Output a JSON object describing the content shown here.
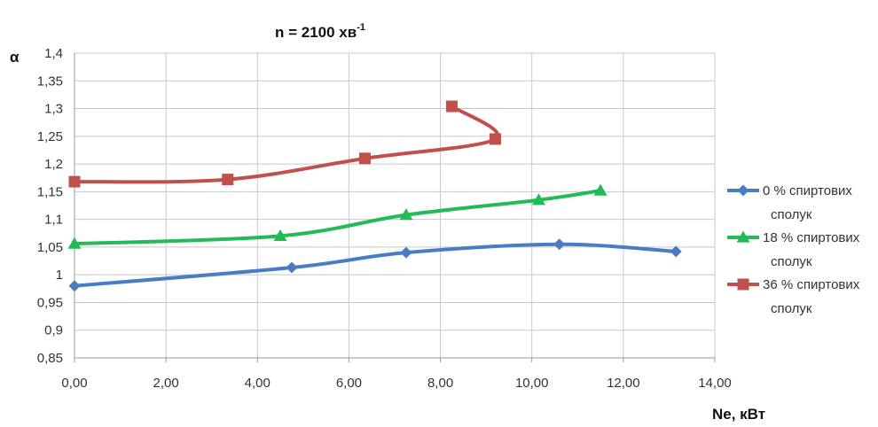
{
  "chart_data": {
    "type": "line",
    "title": "n = 2100 хв",
    "title_superscript": "-1",
    "xlabel": "Ne, кВт",
    "ylabel": "α",
    "xlim": [
      0,
      14
    ],
    "ylim": [
      0.85,
      1.4
    ],
    "x_ticks": [
      "0,00",
      "2,00",
      "4,00",
      "6,00",
      "8,00",
      "10,00",
      "12,00",
      "14,00"
    ],
    "y_ticks": [
      "0,85",
      "0,9",
      "0,95",
      "1",
      "1,05",
      "1,1",
      "1,15",
      "1,2",
      "1,25",
      "1,3",
      "1,35",
      "1,4"
    ],
    "grid": true,
    "legend_position": "right",
    "series": [
      {
        "name": "0 % спиртових сполук",
        "color": "#4a7cc4",
        "marker": "diamond",
        "points": [
          [
            0,
            0.98
          ],
          [
            4.75,
            1.013
          ],
          [
            7.25,
            1.04
          ],
          [
            10.6,
            1.055
          ],
          [
            13.15,
            1.042
          ]
        ]
      },
      {
        "name": "18 % спиртових сполук",
        "color": "#22bb55",
        "marker": "triangle",
        "points": [
          [
            0,
            1.056
          ],
          [
            4.5,
            1.07
          ],
          [
            7.25,
            1.108
          ],
          [
            10.15,
            1.135
          ],
          [
            11.5,
            1.152
          ]
        ]
      },
      {
        "name": "36 % спиртових сполук",
        "color": "#c0504d",
        "marker": "square",
        "points": [
          [
            0,
            1.168
          ],
          [
            3.35,
            1.172
          ],
          [
            6.35,
            1.21
          ],
          [
            9.2,
            1.245
          ],
          [
            8.25,
            1.304
          ]
        ]
      }
    ]
  }
}
